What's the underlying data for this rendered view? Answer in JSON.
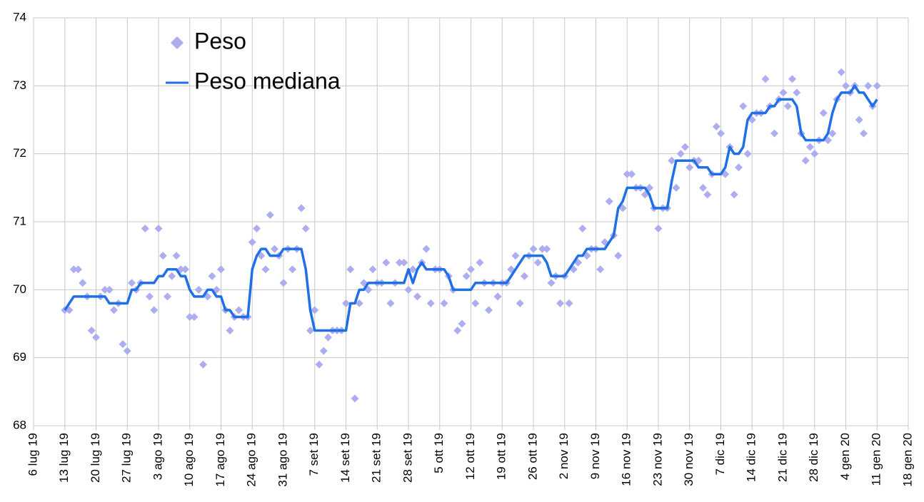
{
  "chart_data": {
    "type": "scatter-line",
    "x": [
      "2019-07-13",
      "2019-07-14",
      "2019-07-15",
      "2019-07-16",
      "2019-07-17",
      "2019-07-18",
      "2019-07-19",
      "2019-07-20",
      "2019-07-21",
      "2019-07-22",
      "2019-07-23",
      "2019-07-24",
      "2019-07-25",
      "2019-07-26",
      "2019-07-27",
      "2019-07-28",
      "2019-07-29",
      "2019-07-30",
      "2019-07-31",
      "2019-08-01",
      "2019-08-02",
      "2019-08-03",
      "2019-08-04",
      "2019-08-05",
      "2019-08-06",
      "2019-08-07",
      "2019-08-08",
      "2019-08-09",
      "2019-08-10",
      "2019-08-11",
      "2019-08-12",
      "2019-08-13",
      "2019-08-14",
      "2019-08-15",
      "2019-08-16",
      "2019-08-17",
      "2019-08-18",
      "2019-08-19",
      "2019-08-20",
      "2019-08-21",
      "2019-08-22",
      "2019-08-23",
      "2019-08-24",
      "2019-08-25",
      "2019-08-26",
      "2019-08-27",
      "2019-08-28",
      "2019-08-29",
      "2019-08-30",
      "2019-08-31",
      "2019-09-01",
      "2019-09-02",
      "2019-09-03",
      "2019-09-04",
      "2019-09-05",
      "2019-09-06",
      "2019-09-07",
      "2019-09-08",
      "2019-09-09",
      "2019-09-10",
      "2019-09-11",
      "2019-09-12",
      "2019-09-13",
      "2019-09-14",
      "2019-09-15",
      "2019-09-16",
      "2019-09-17",
      "2019-09-18",
      "2019-09-19",
      "2019-09-20",
      "2019-09-21",
      "2019-09-22",
      "2019-09-23",
      "2019-09-24",
      "2019-09-25",
      "2019-09-26",
      "2019-09-27",
      "2019-09-28",
      "2019-09-29",
      "2019-09-30",
      "2019-10-01",
      "2019-10-02",
      "2019-10-03",
      "2019-10-04",
      "2019-10-05",
      "2019-10-06",
      "2019-10-07",
      "2019-10-08",
      "2019-10-09",
      "2019-10-10",
      "2019-10-11",
      "2019-10-12",
      "2019-10-13",
      "2019-10-14",
      "2019-10-15",
      "2019-10-16",
      "2019-10-17",
      "2019-10-18",
      "2019-10-19",
      "2019-10-20",
      "2019-10-21",
      "2019-10-22",
      "2019-10-23",
      "2019-10-24",
      "2019-10-25",
      "2019-10-26",
      "2019-10-27",
      "2019-10-28",
      "2019-10-29",
      "2019-10-30",
      "2019-10-31",
      "2019-11-01",
      "2019-11-02",
      "2019-11-03",
      "2019-11-04",
      "2019-11-05",
      "2019-11-06",
      "2019-11-07",
      "2019-11-08",
      "2019-11-09",
      "2019-11-10",
      "2019-11-11",
      "2019-11-12",
      "2019-11-13",
      "2019-11-14",
      "2019-11-15",
      "2019-11-16",
      "2019-11-17",
      "2019-11-18",
      "2019-11-19",
      "2019-11-20",
      "2019-11-21",
      "2019-11-22",
      "2019-11-23",
      "2019-11-24",
      "2019-11-25",
      "2019-11-26",
      "2019-11-27",
      "2019-11-28",
      "2019-11-29",
      "2019-11-30",
      "2019-12-01",
      "2019-12-02",
      "2019-12-03",
      "2019-12-04",
      "2019-12-05",
      "2019-12-06",
      "2019-12-07",
      "2019-12-08",
      "2019-12-09",
      "2019-12-10",
      "2019-12-11",
      "2019-12-12",
      "2019-12-13",
      "2019-12-14",
      "2019-12-15",
      "2019-12-16",
      "2019-12-17",
      "2019-12-18",
      "2019-12-19",
      "2019-12-20",
      "2019-12-21",
      "2019-12-22",
      "2019-12-23",
      "2019-12-24",
      "2019-12-25",
      "2019-12-26",
      "2019-12-27",
      "2019-12-28",
      "2019-12-29",
      "2019-12-30",
      "2019-12-31",
      "2020-01-01",
      "2020-01-02",
      "2020-01-03",
      "2020-01-04",
      "2020-01-05",
      "2020-01-06",
      "2020-01-07",
      "2020-01-08",
      "2020-01-09",
      "2020-01-10",
      "2020-01-11"
    ],
    "series": [
      {
        "name": "Peso",
        "kind": "scatter",
        "color": "#adadf2",
        "values": [
          69.7,
          69.7,
          70.3,
          70.3,
          70.1,
          69.9,
          69.4,
          69.3,
          69.9,
          70.0,
          70.0,
          69.7,
          69.8,
          69.2,
          69.1,
          70.1,
          70.0,
          70.1,
          70.9,
          69.9,
          69.7,
          70.9,
          70.5,
          69.9,
          70.2,
          70.5,
          70.3,
          70.3,
          69.6,
          69.6,
          70.0,
          68.9,
          69.9,
          70.2,
          70.0,
          70.3,
          69.7,
          69.4,
          69.6,
          69.7,
          69.6,
          69.6,
          70.7,
          70.9,
          70.5,
          70.3,
          71.1,
          70.6,
          70.5,
          70.1,
          70.6,
          70.3,
          70.6,
          71.2,
          70.9,
          69.4,
          69.7,
          68.9,
          69.1,
          69.3,
          69.4,
          69.4,
          69.4,
          69.8,
          70.3,
          68.4,
          69.8,
          70.1,
          70.0,
          70.3,
          70.1,
          70.1,
          70.4,
          69.8,
          70.1,
          70.4,
          70.4,
          70.0,
          70.3,
          69.9,
          70.4,
          70.6,
          69.8,
          70.3,
          70.3,
          69.8,
          70.2,
          70.0,
          69.4,
          69.5,
          70.2,
          70.3,
          69.8,
          70.4,
          70.1,
          69.7,
          70.1,
          69.9,
          70.1,
          70.1,
          70.3,
          70.5,
          69.8,
          70.2,
          70.5,
          70.6,
          70.4,
          70.6,
          70.6,
          70.1,
          70.2,
          69.8,
          70.2,
          69.8,
          70.3,
          70.4,
          70.9,
          70.5,
          70.6,
          70.6,
          70.3,
          70.7,
          71.3,
          70.8,
          70.5,
          71.2,
          71.7,
          71.7,
          71.5,
          71.5,
          71.4,
          71.5,
          71.2,
          70.9,
          71.2,
          71.2,
          71.9,
          71.5,
          72.0,
          72.1,
          71.8,
          71.9,
          71.9,
          71.5,
          71.4,
          71.7,
          72.4,
          72.3,
          71.7,
          72.1,
          71.4,
          71.8,
          72.7,
          72.0,
          72.5,
          72.6,
          72.6,
          73.1,
          72.7,
          72.3,
          72.8,
          72.9,
          72.7,
          73.1,
          72.9,
          72.3,
          71.9,
          72.1,
          72.0,
          72.2,
          72.6,
          72.2,
          72.3,
          72.8,
          73.2,
          73.0,
          72.9,
          73.0,
          72.5,
          72.3,
          73.0,
          72.7,
          73.0
        ]
      },
      {
        "name": "Peso mediana",
        "kind": "line",
        "color": "#1f6fe6",
        "values": [
          69.7,
          69.8,
          69.9,
          69.9,
          69.9,
          69.9,
          69.9,
          69.9,
          69.9,
          69.9,
          69.8,
          69.8,
          69.8,
          69.8,
          69.8,
          70.0,
          70.0,
          70.1,
          70.1,
          70.1,
          70.1,
          70.2,
          70.2,
          70.3,
          70.3,
          70.3,
          70.2,
          70.2,
          70.0,
          69.9,
          69.9,
          69.9,
          70.0,
          70.0,
          69.9,
          69.9,
          69.7,
          69.7,
          69.6,
          69.6,
          69.6,
          69.6,
          70.3,
          70.5,
          70.6,
          70.6,
          70.5,
          70.5,
          70.5,
          70.6,
          70.6,
          70.6,
          70.6,
          70.6,
          70.3,
          69.7,
          69.4,
          69.4,
          69.4,
          69.4,
          69.4,
          69.4,
          69.4,
          69.4,
          69.8,
          69.8,
          70.0,
          70.0,
          70.1,
          70.1,
          70.1,
          70.1,
          70.1,
          70.1,
          70.1,
          70.1,
          70.1,
          70.3,
          70.1,
          70.3,
          70.4,
          70.3,
          70.3,
          70.3,
          70.3,
          70.3,
          70.2,
          70.0,
          70.0,
          70.0,
          70.0,
          70.0,
          70.1,
          70.1,
          70.1,
          70.1,
          70.1,
          70.1,
          70.1,
          70.1,
          70.2,
          70.3,
          70.4,
          70.5,
          70.5,
          70.5,
          70.5,
          70.5,
          70.4,
          70.2,
          70.2,
          70.2,
          70.2,
          70.3,
          70.4,
          70.5,
          70.5,
          70.6,
          70.6,
          70.6,
          70.6,
          70.6,
          70.7,
          70.8,
          71.2,
          71.3,
          71.5,
          71.5,
          71.5,
          71.5,
          71.5,
          71.4,
          71.2,
          71.2,
          71.2,
          71.2,
          71.6,
          71.9,
          71.9,
          71.9,
          71.9,
          71.9,
          71.8,
          71.8,
          71.8,
          71.7,
          71.7,
          71.7,
          71.8,
          72.1,
          72.0,
          72.0,
          72.1,
          72.5,
          72.6,
          72.6,
          72.6,
          72.6,
          72.7,
          72.7,
          72.8,
          72.8,
          72.8,
          72.8,
          72.7,
          72.3,
          72.2,
          72.2,
          72.2,
          72.2,
          72.2,
          72.3,
          72.6,
          72.8,
          72.9,
          72.9,
          72.9,
          73.0,
          72.9,
          72.9,
          72.8,
          72.7,
          72.8
        ]
      }
    ],
    "xlim": [
      "2019-07-06",
      "2020-01-18"
    ],
    "xticks": [
      {
        "value": "2019-07-06",
        "label": "6 lug 19"
      },
      {
        "value": "2019-07-13",
        "label": "13 lug 19"
      },
      {
        "value": "2019-07-20",
        "label": "20 lug 19"
      },
      {
        "value": "2019-07-27",
        "label": "27 lug 19"
      },
      {
        "value": "2019-08-03",
        "label": "3 ago 19"
      },
      {
        "value": "2019-08-10",
        "label": "10 ago 19"
      },
      {
        "value": "2019-08-17",
        "label": "17 ago 19"
      },
      {
        "value": "2019-08-24",
        "label": "24 ago 19"
      },
      {
        "value": "2019-08-31",
        "label": "31 ago 19"
      },
      {
        "value": "2019-09-07",
        "label": "7 set 19"
      },
      {
        "value": "2019-09-14",
        "label": "14 set 19"
      },
      {
        "value": "2019-09-21",
        "label": "21 set 19"
      },
      {
        "value": "2019-09-28",
        "label": "28 set 19"
      },
      {
        "value": "2019-10-05",
        "label": "5 ott 19"
      },
      {
        "value": "2019-10-12",
        "label": "12 ott 19"
      },
      {
        "value": "2019-10-19",
        "label": "19 ott 19"
      },
      {
        "value": "2019-10-26",
        "label": "26 ott 19"
      },
      {
        "value": "2019-11-02",
        "label": "2 nov 19"
      },
      {
        "value": "2019-11-09",
        "label": "9 nov 19"
      },
      {
        "value": "2019-11-16",
        "label": "16 nov 19"
      },
      {
        "value": "2019-11-23",
        "label": "23 nov 19"
      },
      {
        "value": "2019-11-30",
        "label": "30 nov 19"
      },
      {
        "value": "2019-12-07",
        "label": "7 dic 19"
      },
      {
        "value": "2019-12-14",
        "label": "14 dic 19"
      },
      {
        "value": "2019-12-21",
        "label": "21 dic 19"
      },
      {
        "value": "2019-12-28",
        "label": "28 dic 19"
      },
      {
        "value": "2020-01-04",
        "label": "4 gen 20"
      },
      {
        "value": "2020-01-11",
        "label": "11 gen 20"
      },
      {
        "value": "2020-01-18",
        "label": "18 gen 20"
      }
    ],
    "ylim": [
      68,
      74
    ],
    "yticks": [
      68,
      69,
      70,
      71,
      72,
      73,
      74
    ],
    "grid": true,
    "legend": "top-left"
  }
}
